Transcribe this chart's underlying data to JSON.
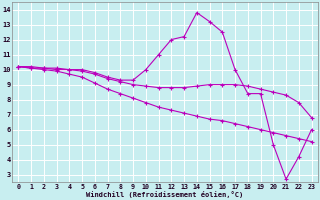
{
  "xlabel": "Windchill (Refroidissement éolien,°C)",
  "xlim": [
    -0.5,
    23.5
  ],
  "ylim": [
    2.5,
    14.5
  ],
  "xticks": [
    0,
    1,
    2,
    3,
    4,
    5,
    6,
    7,
    8,
    9,
    10,
    11,
    12,
    13,
    14,
    15,
    16,
    17,
    18,
    19,
    20,
    21,
    22,
    23
  ],
  "yticks": [
    3,
    4,
    5,
    6,
    7,
    8,
    9,
    10,
    11,
    12,
    13,
    14
  ],
  "line_color": "#bb00bb",
  "bg_color": "#c8eef0",
  "grid_color": "#b0d8da",
  "lines": [
    {
      "x": [
        0,
        1,
        2,
        3,
        4,
        5,
        6,
        7,
        8,
        9,
        10,
        11,
        12,
        13,
        14,
        15,
        16,
        17,
        18,
        19,
        20,
        21,
        22,
        23
      ],
      "y": [
        10.2,
        10.2,
        10.1,
        10.1,
        10.0,
        10.0,
        9.8,
        9.5,
        9.3,
        9.3,
        10.0,
        11.0,
        12.0,
        12.2,
        13.8,
        13.2,
        12.5,
        10.0,
        8.4,
        8.4,
        5.0,
        2.7,
        4.2,
        6.0
      ]
    },
    {
      "x": [
        0,
        1,
        2,
        3,
        4,
        5,
        6,
        7,
        8,
        9,
        10,
        11,
        12,
        13,
        14,
        15,
        16,
        17,
        18,
        19,
        20,
        21,
        22,
        23
      ],
      "y": [
        10.2,
        10.1,
        10.1,
        10.0,
        10.0,
        9.9,
        9.7,
        9.4,
        9.2,
        9.0,
        8.9,
        8.8,
        8.8,
        8.8,
        8.9,
        9.0,
        9.0,
        9.0,
        8.9,
        8.7,
        8.5,
        8.3,
        7.8,
        6.8
      ]
    },
    {
      "x": [
        0,
        1,
        2,
        3,
        4,
        5,
        6,
        7,
        8,
        9,
        10,
        11,
        12,
        13,
        14,
        15,
        16,
        17,
        18,
        19,
        20,
        21,
        22,
        23
      ],
      "y": [
        10.2,
        10.1,
        10.0,
        9.9,
        9.7,
        9.5,
        9.1,
        8.7,
        8.4,
        8.1,
        7.8,
        7.5,
        7.3,
        7.1,
        6.9,
        6.7,
        6.6,
        6.4,
        6.2,
        6.0,
        5.8,
        5.6,
        5.4,
        5.2
      ]
    }
  ]
}
